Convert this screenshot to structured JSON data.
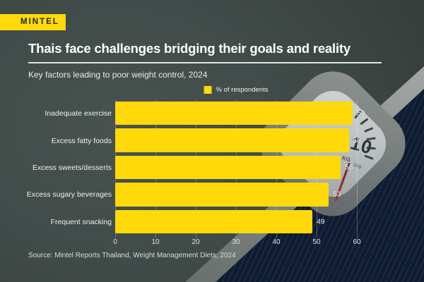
{
  "logo": {
    "text": "MINTEL"
  },
  "header": {
    "title": "Thais face challenges bridging their goals and reality",
    "subtitle": "Key factors leading to poor weight control, 2024"
  },
  "legend": {
    "label": "% of respondents"
  },
  "chart_data": {
    "type": "bar",
    "orientation": "horizontal",
    "title": "Thais face challenges bridging their goals and reality",
    "subtitle": "Key factors leading to poor weight control, 2024",
    "series_label": "% of respondents",
    "categories": [
      "Inadequate exercise",
      "Excess fatty foods",
      "Excess sweets/desserts",
      "Excess sugary beverages",
      "Frequent snacking"
    ],
    "values": [
      59,
      58,
      56,
      53,
      49
    ],
    "xlim": [
      0,
      60
    ],
    "x_ticks": [
      0,
      10,
      20,
      30,
      40,
      50,
      60
    ],
    "xlabel": "",
    "ylabel": "",
    "grid": "vertical",
    "legend_position": "top-center",
    "bar_color": "#FFD90A"
  },
  "source": {
    "text": "Source: Mintel Reports Thailand, Weight Management Diets, 2024"
  },
  "background": {
    "dial_number": "10",
    "dial_unit": "KG",
    "dial_subunit": "1kg"
  },
  "colors": {
    "accent_yellow": "#FFD90A",
    "background_dark": "#3F4947",
    "scale_mat_navy": "#13203A",
    "needle_red": "#8E2025",
    "title_text": "#FFFFFF"
  }
}
